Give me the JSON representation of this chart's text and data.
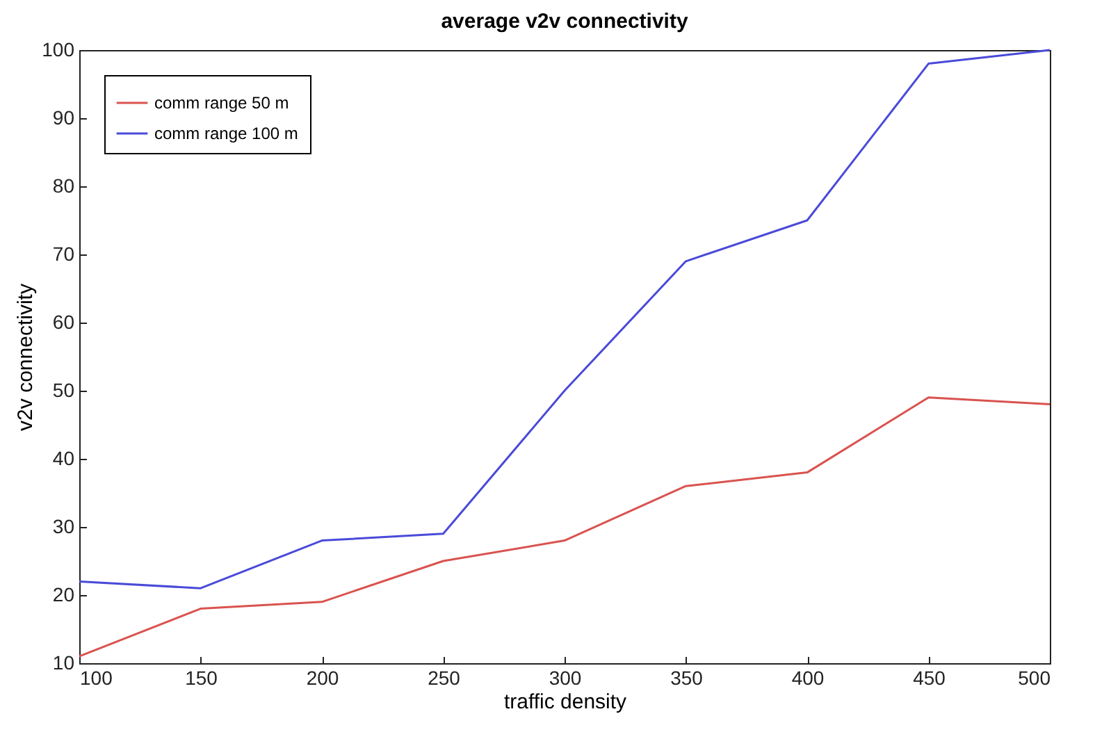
{
  "chart_data": {
    "type": "line",
    "title": "average v2v connectivity",
    "xlabel": "traffic density",
    "ylabel": "v2v connectivity",
    "x": [
      100,
      150,
      200,
      250,
      300,
      350,
      400,
      450,
      500
    ],
    "series": [
      {
        "name": "comm range 50 m",
        "color": "#d9534f",
        "values": [
          11,
          18,
          19,
          25,
          28,
          36,
          38,
          49,
          48
        ]
      },
      {
        "name": "comm range 100 m",
        "color": "#4a4ad9",
        "values": [
          22,
          21,
          28,
          29,
          50,
          69,
          75,
          98,
          100
        ]
      }
    ],
    "xlim": [
      100,
      500
    ],
    "xticks": [
      100,
      150,
      200,
      250,
      300,
      350,
      400,
      450,
      500
    ],
    "ylim": [
      10,
      100
    ],
    "yticks": [
      10,
      20,
      30,
      40,
      50,
      60,
      70,
      80,
      90,
      100
    ],
    "grid": false,
    "legend": "top left",
    "marker": "none",
    "line_style": "solid"
  }
}
